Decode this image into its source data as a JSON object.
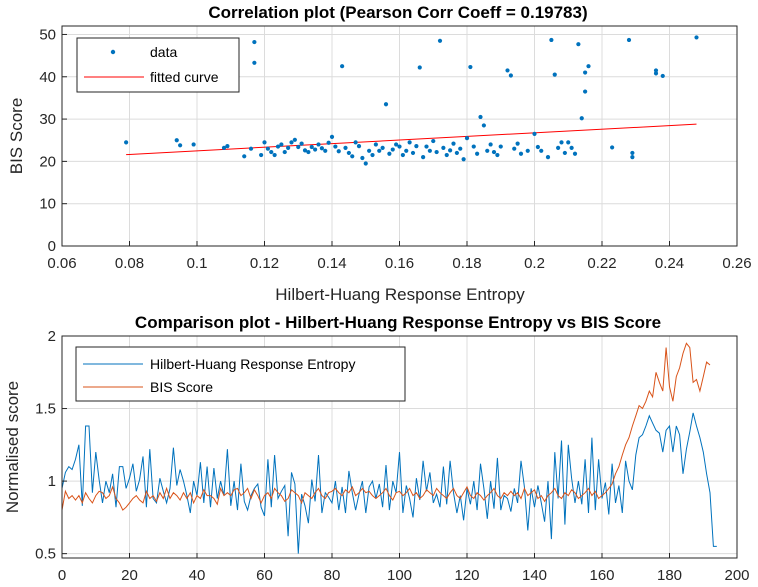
{
  "colors": {
    "blue": "#0072BD",
    "red": "#FF0000",
    "orange": "#D95319",
    "grid": "#dcdcdc",
    "axis": "#262626"
  },
  "chart_data": [
    {
      "type": "scatter",
      "title": "Correlation plot (Pearson Corr Coeff = 0.19783)",
      "xlabel": "Hilbert-Huang Response Entropy",
      "ylabel": "BIS Score",
      "xlim": [
        0.06,
        0.26
      ],
      "ylim": [
        0,
        52
      ],
      "xticks": [
        0.06,
        0.08,
        0.1,
        0.12,
        0.14,
        0.16,
        0.18,
        0.2,
        0.22,
        0.24,
        0.26
      ],
      "xtick_labels": [
        "0.06",
        "0.08",
        "0.1",
        "0.12",
        "0.14",
        "0.16",
        "0.18",
        "0.2",
        "0.22",
        "0.24",
        "0.26"
      ],
      "yticks": [
        0,
        10,
        20,
        30,
        40,
        50
      ],
      "ytick_labels": [
        "0",
        "10",
        "20",
        "30",
        "40",
        "50"
      ],
      "grid": true,
      "legend": {
        "position": "top-left",
        "entries": [
          "data",
          "fitted curve"
        ]
      },
      "series": [
        {
          "name": "data",
          "points": [
            [
              0.076,
              48
            ],
            [
              0.079,
              24.5
            ],
            [
              0.094,
              25
            ],
            [
              0.095,
              23.8
            ],
            [
              0.099,
              24
            ],
            [
              0.108,
              23.2
            ],
            [
              0.109,
              23.6
            ],
            [
              0.114,
              21.2
            ],
            [
              0.116,
              23
            ],
            [
              0.117,
              48.2
            ],
            [
              0.117,
              43.3
            ],
            [
              0.119,
              21.5
            ],
            [
              0.12,
              24.5
            ],
            [
              0.121,
              23
            ],
            [
              0.122,
              22.2
            ],
            [
              0.123,
              21.5
            ],
            [
              0.124,
              23.5
            ],
            [
              0.125,
              24
            ],
            [
              0.126,
              22.2
            ],
            [
              0.127,
              23.2
            ],
            [
              0.128,
              24.5
            ],
            [
              0.129,
              25.1
            ],
            [
              0.13,
              23.4
            ],
            [
              0.131,
              24.2
            ],
            [
              0.132,
              22.6
            ],
            [
              0.133,
              22.2
            ],
            [
              0.134,
              23.4
            ],
            [
              0.135,
              22.8
            ],
            [
              0.136,
              24
            ],
            [
              0.137,
              23.1
            ],
            [
              0.138,
              22.5
            ],
            [
              0.139,
              24.4
            ],
            [
              0.14,
              25.8
            ],
            [
              0.141,
              23.5
            ],
            [
              0.142,
              22.4
            ],
            [
              0.143,
              42.5
            ],
            [
              0.144,
              23.2
            ],
            [
              0.145,
              22
            ],
            [
              0.146,
              21.2
            ],
            [
              0.147,
              24.5
            ],
            [
              0.148,
              23.6
            ],
            [
              0.149,
              20.8
            ],
            [
              0.15,
              19.5
            ],
            [
              0.151,
              22.5
            ],
            [
              0.152,
              21.5
            ],
            [
              0.153,
              24
            ],
            [
              0.154,
              22.5
            ],
            [
              0.155,
              23.2
            ],
            [
              0.156,
              33.5
            ],
            [
              0.157,
              21.8
            ],
            [
              0.158,
              22.8
            ],
            [
              0.159,
              24
            ],
            [
              0.16,
              23.5
            ],
            [
              0.161,
              21.5
            ],
            [
              0.162,
              22.5
            ],
            [
              0.163,
              24.5
            ],
            [
              0.164,
              22
            ],
            [
              0.165,
              23.6
            ],
            [
              0.166,
              42.2
            ],
            [
              0.167,
              21
            ],
            [
              0.168,
              23.5
            ],
            [
              0.169,
              22.5
            ],
            [
              0.17,
              24.8
            ],
            [
              0.171,
              22.2
            ],
            [
              0.172,
              48.5
            ],
            [
              0.173,
              23.2
            ],
            [
              0.174,
              21.5
            ],
            [
              0.175,
              22.6
            ],
            [
              0.176,
              24.2
            ],
            [
              0.177,
              22
            ],
            [
              0.178,
              23
            ],
            [
              0.179,
              20.5
            ],
            [
              0.18,
              25.5
            ],
            [
              0.181,
              42.3
            ],
            [
              0.182,
              23.5
            ],
            [
              0.183,
              21.8
            ],
            [
              0.184,
              30.5
            ],
            [
              0.185,
              28.5
            ],
            [
              0.186,
              22.5
            ],
            [
              0.187,
              24
            ],
            [
              0.188,
              22.2
            ],
            [
              0.189,
              21.5
            ],
            [
              0.19,
              23.5
            ],
            [
              0.192,
              41.5
            ],
            [
              0.193,
              40.3
            ],
            [
              0.194,
              23
            ],
            [
              0.195,
              24.2
            ],
            [
              0.196,
              21.8
            ],
            [
              0.198,
              22.5
            ],
            [
              0.2,
              26.5
            ],
            [
              0.201,
              23.4
            ],
            [
              0.202,
              22.5
            ],
            [
              0.204,
              21
            ],
            [
              0.205,
              48.7
            ],
            [
              0.206,
              40.5
            ],
            [
              0.207,
              23.2
            ],
            [
              0.208,
              24.5
            ],
            [
              0.209,
              22
            ],
            [
              0.21,
              24.5
            ],
            [
              0.211,
              23.2
            ],
            [
              0.212,
              21.8
            ],
            [
              0.213,
              47.7
            ],
            [
              0.214,
              30.2
            ],
            [
              0.215,
              36.5
            ],
            [
              0.216,
              42.5
            ],
            [
              0.215,
              41
            ],
            [
              0.223,
              23.3
            ],
            [
              0.228,
              48.7
            ],
            [
              0.229,
              22
            ],
            [
              0.229,
              21
            ],
            [
              0.236,
              41.5
            ],
            [
              0.236,
              40.8
            ],
            [
              0.238,
              40.2
            ],
            [
              0.248,
              49.3
            ]
          ]
        },
        {
          "name": "fitted curve",
          "line": [
            [
              0.079,
              21.6
            ],
            [
              0.248,
              28.8
            ]
          ]
        }
      ]
    },
    {
      "type": "line",
      "title": "Comparison plot - Hilbert-Huang Response Entropy vs BIS Score",
      "xlabel": "",
      "ylabel": "Normalised score",
      "xlim": [
        0,
        200
      ],
      "ylim": [
        0.47,
        2
      ],
      "xticks": [
        0,
        20,
        40,
        60,
        80,
        100,
        120,
        140,
        160,
        180,
        200
      ],
      "xtick_labels": [
        "0",
        "20",
        "40",
        "60",
        "80",
        "100",
        "120",
        "140",
        "160",
        "180",
        "200"
      ],
      "yticks": [
        0.5,
        1,
        1.5,
        2
      ],
      "ytick_labels": [
        "0.5",
        "1",
        "1.5",
        "2"
      ],
      "grid": true,
      "legend": {
        "position": "top-left",
        "entries": [
          "Hilbert-Huang Response Entropy",
          "BIS Score"
        ]
      },
      "series": [
        {
          "name": "Hilbert-Huang Response Entropy",
          "x_start": 0,
          "x_step": 1,
          "values": [
            0.95,
            1.06,
            1.1,
            1.08,
            1.15,
            1.25,
            0.83,
            1.38,
            1.38,
            0.92,
            1.2,
            1.01,
            0.85,
            1.0,
            0.92,
            1.05,
            0.82,
            1.1,
            1.1,
            0.95,
            1.02,
            1.12,
            0.93,
            1.01,
            1.17,
            0.82,
            1.22,
            0.88,
            0.85,
            1.02,
            0.93,
            0.85,
            0.95,
            1.23,
            0.97,
            1.08,
            1.0,
            0.9,
            0.78,
            1.0,
            0.9,
            1.13,
            0.85,
            1.1,
            0.82,
            1.09,
            0.88,
            1.0,
            0.9,
            1.22,
            0.83,
            1.0,
            0.8,
            1.12,
            0.86,
            0.8,
            0.9,
            0.95,
            0.98,
            0.82,
            0.76,
            1.15,
            0.82,
            1.18,
            0.88,
            0.93,
            0.97,
            0.62,
            1.06,
            0.98,
            0.5,
            0.91,
            0.83,
            0.71,
            1.01,
            0.86,
            1.18,
            0.78,
            0.92,
            0.89,
            0.85,
            1.0,
            0.8,
            0.96,
            0.78,
            1.07,
            0.92,
            0.8,
            0.91,
            1.0,
            0.78,
            0.96,
            1.0,
            0.88,
            0.98,
            0.82,
            1.11,
            0.8,
            1.0,
            0.92,
            1.2,
            0.78,
            0.97,
            0.88,
            0.75,
            1.02,
            0.87,
            1.14,
            0.93,
            1.06,
            0.85,
            0.91,
            0.82,
            1.1,
            0.84,
            1.14,
            0.92,
            0.78,
            0.9,
            0.73,
            0.95,
            0.84,
            1.0,
            0.8,
            1.12,
            0.95,
            0.74,
            1.0,
            0.81,
            1.16,
            0.8,
            0.9,
            0.88,
            0.79,
            0.95,
            0.85,
            1.14,
            0.96,
            0.66,
            0.95,
            0.82,
            0.97,
            0.85,
            0.72,
            1.0,
            0.6,
            1.2,
            0.88,
            1.28,
            0.7,
            1.25,
            1.02,
            0.85,
            1.0,
            0.84,
            1.15,
            0.78,
            1.3,
            0.8,
            1.15,
            0.88,
            0.99,
            0.77,
            1.12,
            0.85,
            0.97,
            0.78,
            1.14,
            1.0,
            0.94,
            1.18,
            1.3,
            1.32,
            1.38,
            1.45,
            1.4,
            1.35,
            1.33,
            1.2,
            1.35,
            1.38,
            1.2,
            1.38,
            1.32,
            1.05,
            1.22,
            1.34,
            1.47,
            1.38,
            1.3,
            1.2,
            1.05,
            0.92,
            0.55,
            0.55
          ]
        },
        {
          "name": "BIS Score",
          "x_start": 0,
          "x_step": 1,
          "values": [
            0.8,
            0.93,
            0.88,
            0.9,
            0.87,
            0.9,
            0.85,
            0.92,
            0.88,
            0.85,
            0.9,
            0.93,
            0.92,
            0.88,
            0.9,
            0.96,
            0.88,
            0.85,
            0.8,
            0.82,
            0.85,
            0.88,
            0.9,
            0.87,
            0.85,
            0.93,
            0.88,
            0.9,
            0.86,
            0.92,
            0.88,
            0.95,
            0.88,
            0.92,
            0.9,
            0.87,
            0.92,
            0.88,
            0.92,
            0.85,
            0.9,
            0.88,
            0.94,
            0.9,
            0.9,
            0.88,
            0.84,
            0.95,
            0.9,
            0.92,
            0.9,
            0.94,
            0.95,
            0.9,
            0.92,
            0.95,
            0.88,
            0.94,
            0.9,
            0.85,
            0.9,
            0.92,
            0.88,
            0.95,
            0.92,
            0.9,
            0.86,
            0.88,
            0.94,
            0.92,
            0.9,
            0.85,
            0.92,
            0.9,
            0.88,
            0.92,
            0.95,
            0.9,
            0.88,
            0.92,
            0.93,
            0.95,
            0.92,
            0.9,
            0.94,
            0.92,
            0.96,
            0.9,
            0.92,
            0.95,
            0.92,
            0.93,
            0.9,
            0.88,
            0.9,
            0.92,
            0.95,
            0.9,
            0.87,
            0.92,
            0.93,
            0.9,
            0.92,
            0.95,
            0.9,
            0.92,
            0.88,
            0.9,
            0.94,
            0.92,
            0.9,
            0.95,
            0.92,
            0.9,
            0.88,
            0.92,
            0.95,
            0.9,
            0.88,
            0.92,
            0.96,
            0.9,
            0.88,
            0.92,
            0.9,
            0.87,
            0.9,
            0.92,
            0.95,
            0.9,
            0.88,
            0.92,
            0.9,
            0.93,
            0.9,
            0.92,
            0.88,
            0.95,
            0.9,
            0.92,
            0.94,
            0.88,
            0.9,
            0.86,
            0.9,
            0.92,
            0.95,
            0.9,
            0.88,
            0.92,
            0.9,
            0.94,
            0.92,
            0.88,
            0.9,
            0.92,
            0.95,
            0.9,
            0.93,
            0.88,
            0.9,
            0.92,
            0.95,
            0.98,
            1.05,
            1.1,
            1.18,
            1.25,
            1.3,
            1.38,
            1.45,
            1.52,
            1.5,
            1.55,
            1.62,
            1.58,
            1.75,
            1.68,
            1.62,
            1.92,
            1.65,
            1.55,
            1.72,
            1.78,
            1.88,
            1.95,
            1.92,
            1.68,
            1.7,
            1.62,
            1.72,
            1.82,
            1.8
          ]
        }
      ]
    }
  ]
}
